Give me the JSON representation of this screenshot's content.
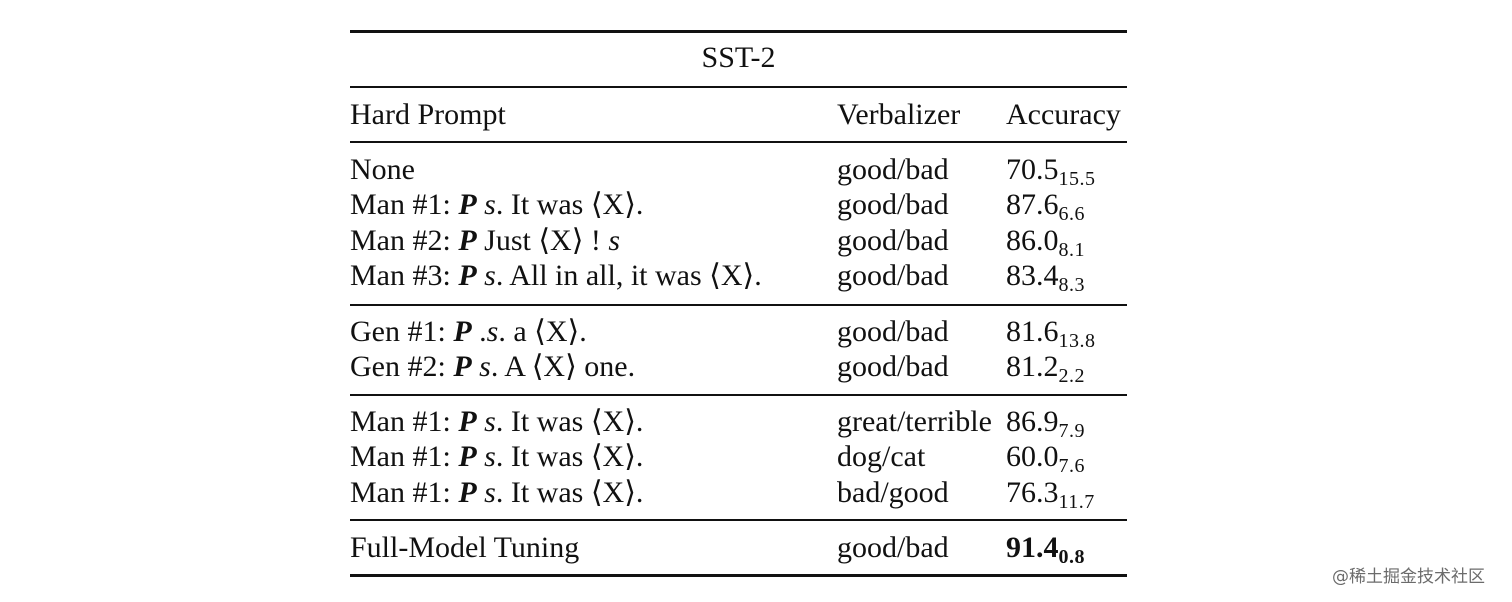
{
  "table": {
    "title": "SST-2",
    "headers": {
      "prompt": "Hard Prompt",
      "verbalizer": "Verbalizer",
      "accuracy": "Accuracy"
    },
    "groups": [
      [
        {
          "label": "None",
          "P": "",
          "rest": "",
          "verbalizer": "good/bad",
          "acc": "70.5",
          "std": "15.5",
          "bold": false
        },
        {
          "label": "Man #1: ",
          "P": "P",
          "rest": " s. It was ⟨X⟩.",
          "verbalizer": "good/bad",
          "acc": "87.6",
          "std": "6.6",
          "bold": false
        },
        {
          "label": "Man #2: ",
          "P": "P",
          "rest": " Just ⟨X⟩ ! s",
          "verbalizer": "good/bad",
          "acc": "86.0",
          "std": "8.1",
          "bold": false
        },
        {
          "label": "Man #3: ",
          "P": "P",
          "rest": " s. All in all, it was ⟨X⟩.",
          "verbalizer": "good/bad",
          "acc": "83.4",
          "std": "8.3",
          "bold": false
        }
      ],
      [
        {
          "label": "Gen #1: ",
          "P": "P",
          "rest": " .s. a ⟨X⟩.",
          "verbalizer": "good/bad",
          "acc": "81.6",
          "std": "13.8",
          "bold": false
        },
        {
          "label": "Gen #2: ",
          "P": "P",
          "rest": " s.  A ⟨X⟩ one.",
          "verbalizer": "good/bad",
          "acc": "81.2",
          "std": "2.2",
          "bold": false
        }
      ],
      [
        {
          "label": "Man #1: ",
          "P": "P",
          "rest": " s.  It was ⟨X⟩.",
          "verbalizer": "great/terrible",
          "acc": "86.9",
          "std": "7.9",
          "bold": false
        },
        {
          "label": "Man #1: ",
          "P": "P",
          "rest": " s.  It was ⟨X⟩.",
          "verbalizer": "dog/cat",
          "acc": "60.0",
          "std": "7.6",
          "bold": false
        },
        {
          "label": "Man #1: ",
          "P": "P",
          "rest": " s.  It was ⟨X⟩.",
          "verbalizer": "bad/good",
          "acc": "76.3",
          "std": "11.7",
          "bold": false
        }
      ],
      [
        {
          "label": "Full-Model Tuning",
          "P": "",
          "rest": "",
          "verbalizer": "good/bad",
          "acc": "91.4",
          "std": "0.8",
          "bold": true
        }
      ]
    ]
  },
  "watermark": "@稀土掘金技术社区"
}
